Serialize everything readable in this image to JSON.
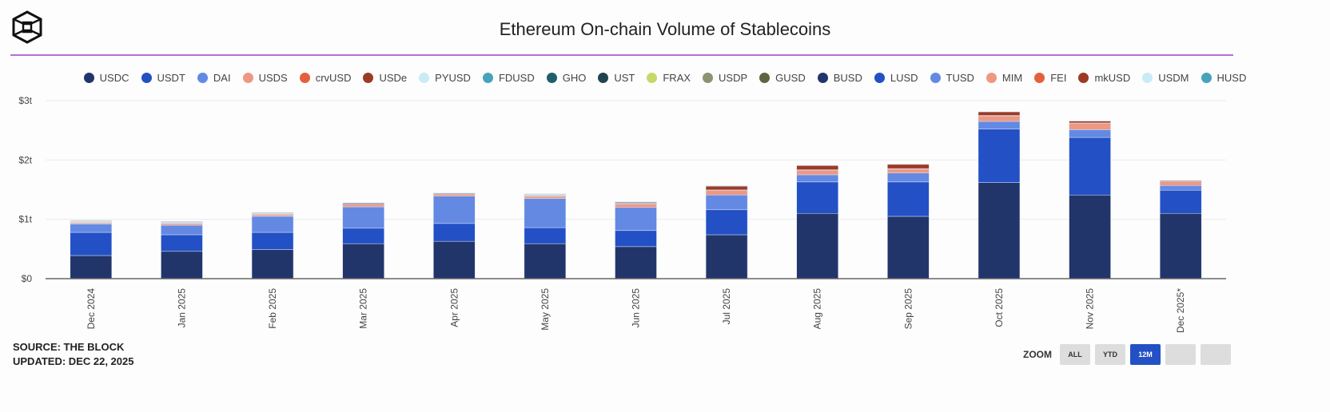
{
  "header": {
    "title": "Ethereum On-chain Volume of Stablecoins"
  },
  "footer": {
    "source": "SOURCE: THE BLOCK",
    "updated": "UPDATED: DEC 22, 2025"
  },
  "zoom": {
    "label": "ZOOM",
    "buttons": [
      "ALL",
      "YTD",
      "12M",
      "",
      ""
    ],
    "active": "12M"
  },
  "chart_data": {
    "type": "bar",
    "stacked": true,
    "title": "Ethereum On-chain Volume of Stablecoins",
    "ylabel": "",
    "xlabel": "",
    "ylim": [
      0,
      3
    ],
    "yunit": "trillion USD",
    "yticks": [
      "$0",
      "$1t",
      "$2t",
      "$3t"
    ],
    "grid": true,
    "legend_position": "top",
    "categories": [
      "Dec 2024",
      "Jan 2025",
      "Feb 2025",
      "Mar 2025",
      "Apr 2025",
      "May 2025",
      "Jun 2025",
      "Jul 2025",
      "Aug 2025",
      "Sep 2025",
      "Oct 2025",
      "Nov 2025",
      "Dec 2025*"
    ],
    "series": [
      {
        "name": "USDC",
        "color": "#22356b",
        "values": [
          0.39,
          0.46,
          0.49,
          0.59,
          0.63,
          0.59,
          0.54,
          0.74,
          1.1,
          1.05,
          1.62,
          1.41,
          1.1
        ]
      },
      {
        "name": "USDT",
        "color": "#2350c5",
        "values": [
          0.39,
          0.28,
          0.29,
          0.26,
          0.3,
          0.27,
          0.27,
          0.42,
          0.53,
          0.58,
          0.9,
          0.97,
          0.39
        ]
      },
      {
        "name": "DAI",
        "color": "#6389e3",
        "values": [
          0.14,
          0.16,
          0.27,
          0.36,
          0.46,
          0.49,
          0.39,
          0.25,
          0.12,
          0.15,
          0.13,
          0.13,
          0.08
        ]
      },
      {
        "name": "USDS",
        "color": "#ee9882",
        "values": [
          0.02,
          0.03,
          0.03,
          0.04,
          0.04,
          0.04,
          0.06,
          0.08,
          0.08,
          0.07,
          0.09,
          0.11,
          0.07
        ]
      },
      {
        "name": "crvUSD",
        "color": "#e4603d",
        "values": [
          0.005,
          0.005,
          0.005,
          0.005,
          0.005,
          0.005,
          0.005,
          0.005,
          0.005,
          0.005,
          0.01,
          0.005,
          0.005
        ]
      },
      {
        "name": "USDe",
        "color": "#9b3b25",
        "values": [
          0.01,
          0.01,
          0.01,
          0.02,
          0.005,
          0.01,
          0.02,
          0.07,
          0.07,
          0.07,
          0.06,
          0.03,
          0.01
        ]
      },
      {
        "name": "PYUSD",
        "color": "#c8ecf4",
        "values": [
          0.005,
          0.003,
          0.005,
          0,
          0,
          0.003,
          0.003,
          0.003,
          0,
          0,
          0,
          0,
          0
        ]
      },
      {
        "name": "FDUSD",
        "color": "#45a3bc",
        "values": [
          0.01,
          0.003,
          0.005,
          0,
          0,
          0.01,
          0.003,
          0,
          0,
          0,
          0,
          0,
          0
        ]
      },
      {
        "name": "GHO",
        "color": "#1f5e6e",
        "values": [
          0.005,
          0.003,
          0.005,
          0.003,
          0.003,
          0.01,
          0.003,
          0,
          0,
          0,
          0,
          0,
          0
        ]
      },
      {
        "name": "UST",
        "color": "#1f4450",
        "values": [
          0,
          0,
          0,
          0,
          0,
          0,
          0,
          0,
          0,
          0,
          0,
          0,
          0
        ]
      },
      {
        "name": "FRAX",
        "color": "#c5d96a",
        "values": [
          0.003,
          0.005,
          0.003,
          0,
          0,
          0.003,
          0,
          0,
          0,
          0,
          0,
          0,
          0
        ]
      },
      {
        "name": "USDP",
        "color": "#8a9470",
        "values": [
          0.003,
          0.003,
          0.003,
          0,
          0,
          0,
          0,
          0,
          0,
          0,
          0,
          0,
          0
        ]
      },
      {
        "name": "GUSD",
        "color": "#5c6540",
        "values": [
          0,
          0,
          0,
          0,
          0,
          0,
          0,
          0,
          0,
          0,
          0,
          0,
          0
        ]
      },
      {
        "name": "BUSD",
        "color": "#22356b",
        "values": [
          0,
          0,
          0,
          0,
          0,
          0,
          0,
          0,
          0,
          0,
          0,
          0,
          0
        ]
      },
      {
        "name": "LUSD",
        "color": "#2350c5",
        "values": [
          0,
          0,
          0,
          0,
          0,
          0,
          0,
          0,
          0,
          0,
          0,
          0,
          0
        ]
      },
      {
        "name": "TUSD",
        "color": "#6389e3",
        "values": [
          0,
          0,
          0,
          0,
          0,
          0,
          0,
          0,
          0,
          0,
          0,
          0,
          0
        ]
      },
      {
        "name": "MIM",
        "color": "#ee9882",
        "values": [
          0,
          0,
          0,
          0,
          0,
          0,
          0,
          0,
          0,
          0,
          0,
          0,
          0
        ]
      },
      {
        "name": "FEI",
        "color": "#e4603d",
        "values": [
          0,
          0,
          0,
          0,
          0,
          0,
          0,
          0,
          0,
          0,
          0,
          0,
          0
        ]
      },
      {
        "name": "mkUSD",
        "color": "#9b3b25",
        "values": [
          0,
          0,
          0,
          0,
          0,
          0,
          0,
          0,
          0,
          0,
          0,
          0,
          0
        ]
      },
      {
        "name": "USDM",
        "color": "#c8ecf4",
        "values": [
          0,
          0,
          0,
          0,
          0,
          0,
          0,
          0,
          0,
          0,
          0,
          0,
          0
        ]
      },
      {
        "name": "HUSD",
        "color": "#45a3bc",
        "values": [
          0,
          0,
          0,
          0,
          0,
          0,
          0,
          0,
          0,
          0,
          0,
          0,
          0
        ]
      }
    ]
  }
}
